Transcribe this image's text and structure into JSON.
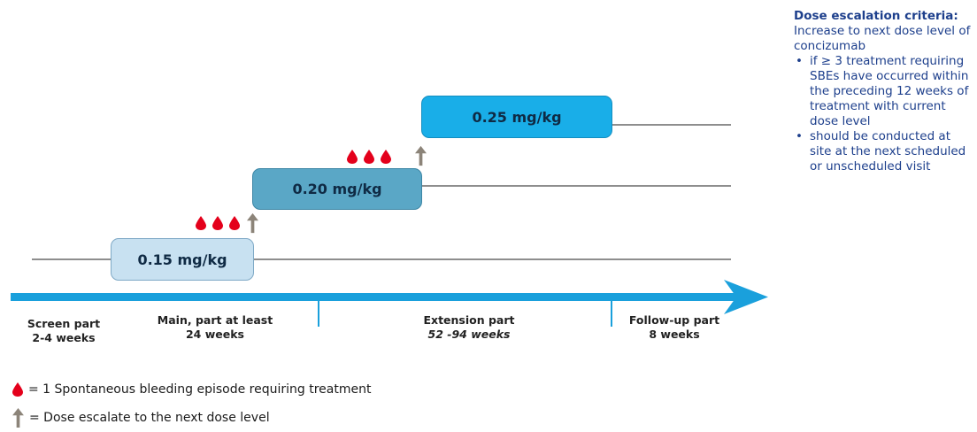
{
  "doses": {
    "level1": "0.15 mg/kg",
    "level2": "0.20 mg/kg",
    "level3": "0.25 mg/kg"
  },
  "phases": {
    "screen": {
      "line1": "Screen part",
      "line2": "2-4 weeks"
    },
    "main": {
      "line1": "Main, part at least",
      "line2": "24 weeks"
    },
    "extension": {
      "line1": "Extension part",
      "line2": "52 -94 weeks"
    },
    "followup": {
      "line1": "Follow-up part",
      "line2": "8 weeks"
    }
  },
  "criteria": {
    "title": "Dose escalation criteria:",
    "subtitle": "Increase to next dose level of concizumab",
    "bullets": [
      "if ≥ 3 treatment requiring SBEs have occurred within the preceding 12 weeks of treatment with current dose level",
      "should be conducted at site at the next scheduled or unscheduled visit"
    ]
  },
  "legend": {
    "drop": "= 1 Spontaneous bleeding episode requiring treatment",
    "arrow": "= Dose escalate to the next dose level"
  },
  "colors": {
    "drop": "#e4001b",
    "arrow": "#8c8479",
    "timeline": "#1aa0dc",
    "criteria_text": "#1d3f8c"
  }
}
